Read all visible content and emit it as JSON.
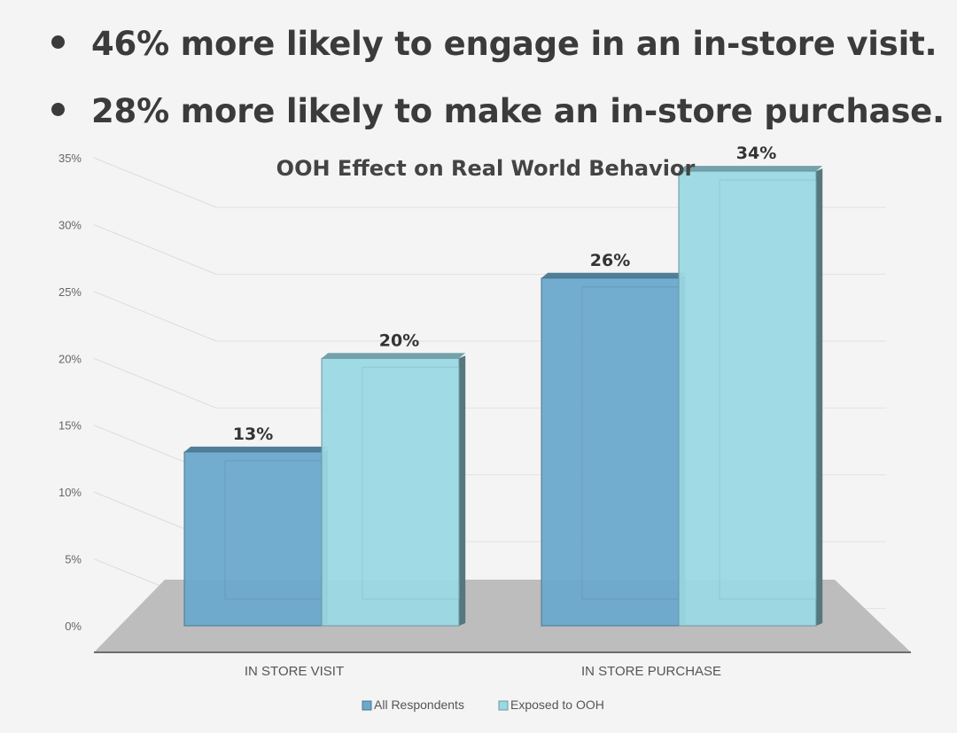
{
  "bullets": [
    "46% more likely to engage in an in-store visit.",
    "28% more likely to make an in-store purchase."
  ],
  "chart_data": {
    "type": "bar",
    "title": "OOH Effect on Real World Behavior",
    "categories": [
      "IN STORE VISIT",
      "IN STORE PURCHASE"
    ],
    "series": [
      {
        "name": "All Respondents",
        "values": [
          13,
          26
        ],
        "labels": [
          "13%",
          "26%"
        ],
        "color": "#6aa8cc"
      },
      {
        "name": "Exposed to OOH",
        "values": [
          20,
          34
        ],
        "labels": [
          "20%",
          "34%"
        ],
        "color": "#9ad8e4"
      }
    ],
    "ylim": [
      0,
      35
    ],
    "yticks": [
      0,
      5,
      10,
      15,
      20,
      25,
      30,
      35
    ],
    "ytick_labels": [
      "0%",
      "5%",
      "10%",
      "15%",
      "20%",
      "25%",
      "30%",
      "35%"
    ],
    "grid": true,
    "legend_position": "bottom",
    "style": "3d"
  }
}
